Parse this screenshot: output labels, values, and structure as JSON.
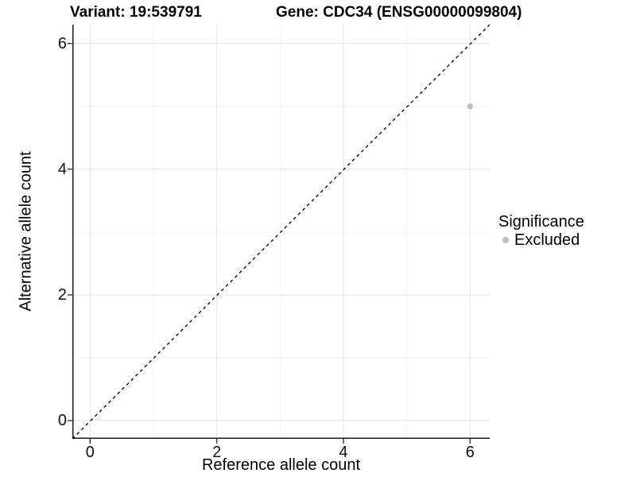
{
  "title_row": {
    "variant": "Variant: 19:539791",
    "gene": "Gene: CDC34 (ENSG00000099804)"
  },
  "axes": {
    "x_label": "Reference allele count",
    "y_label": "Alternative allele count"
  },
  "legend": {
    "title": "Significance",
    "items": [
      {
        "label": "Excluded",
        "color": "#bebebe"
      }
    ]
  },
  "colors": {
    "background": "#ffffff",
    "point": "#bebebe",
    "axis_line": "#1a1a1a",
    "grid_major": "#e6e6e6",
    "grid_minor": "#f2f2f2",
    "identity_line": "#000000"
  },
  "chart_data": {
    "type": "scatter",
    "title": "Variant: 19:539791 | Gene: CDC34 (ENSG00000099804)",
    "xlabel": "Reference allele count",
    "ylabel": "Alternative allele count",
    "xlim": [
      -0.28,
      6.31
    ],
    "ylim": [
      -0.29,
      6.3
    ],
    "x_ticks": [
      0,
      2,
      4,
      6
    ],
    "y_ticks": [
      0,
      2,
      4,
      6
    ],
    "minor_ticks": [
      1,
      3,
      5
    ],
    "grid": true,
    "legend_position": "right",
    "legend_title": "Significance",
    "series": [
      {
        "name": "Excluded",
        "color": "#bebebe",
        "points": [
          {
            "x": 6,
            "y": 5
          }
        ]
      }
    ],
    "reference_line": {
      "type": "identity y=x",
      "style": "dashed",
      "color": "#000000"
    }
  }
}
